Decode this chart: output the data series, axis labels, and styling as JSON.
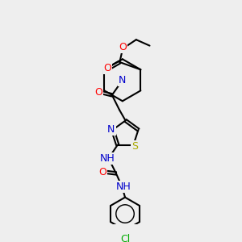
{
  "bg_color": "#eeeeee",
  "bond_color": "#000000",
  "bond_width": 1.5,
  "atom_colors": {
    "C": "#000000",
    "N": "#0000cc",
    "O": "#ff0000",
    "S": "#aaaa00",
    "Cl": "#00aa00"
  }
}
